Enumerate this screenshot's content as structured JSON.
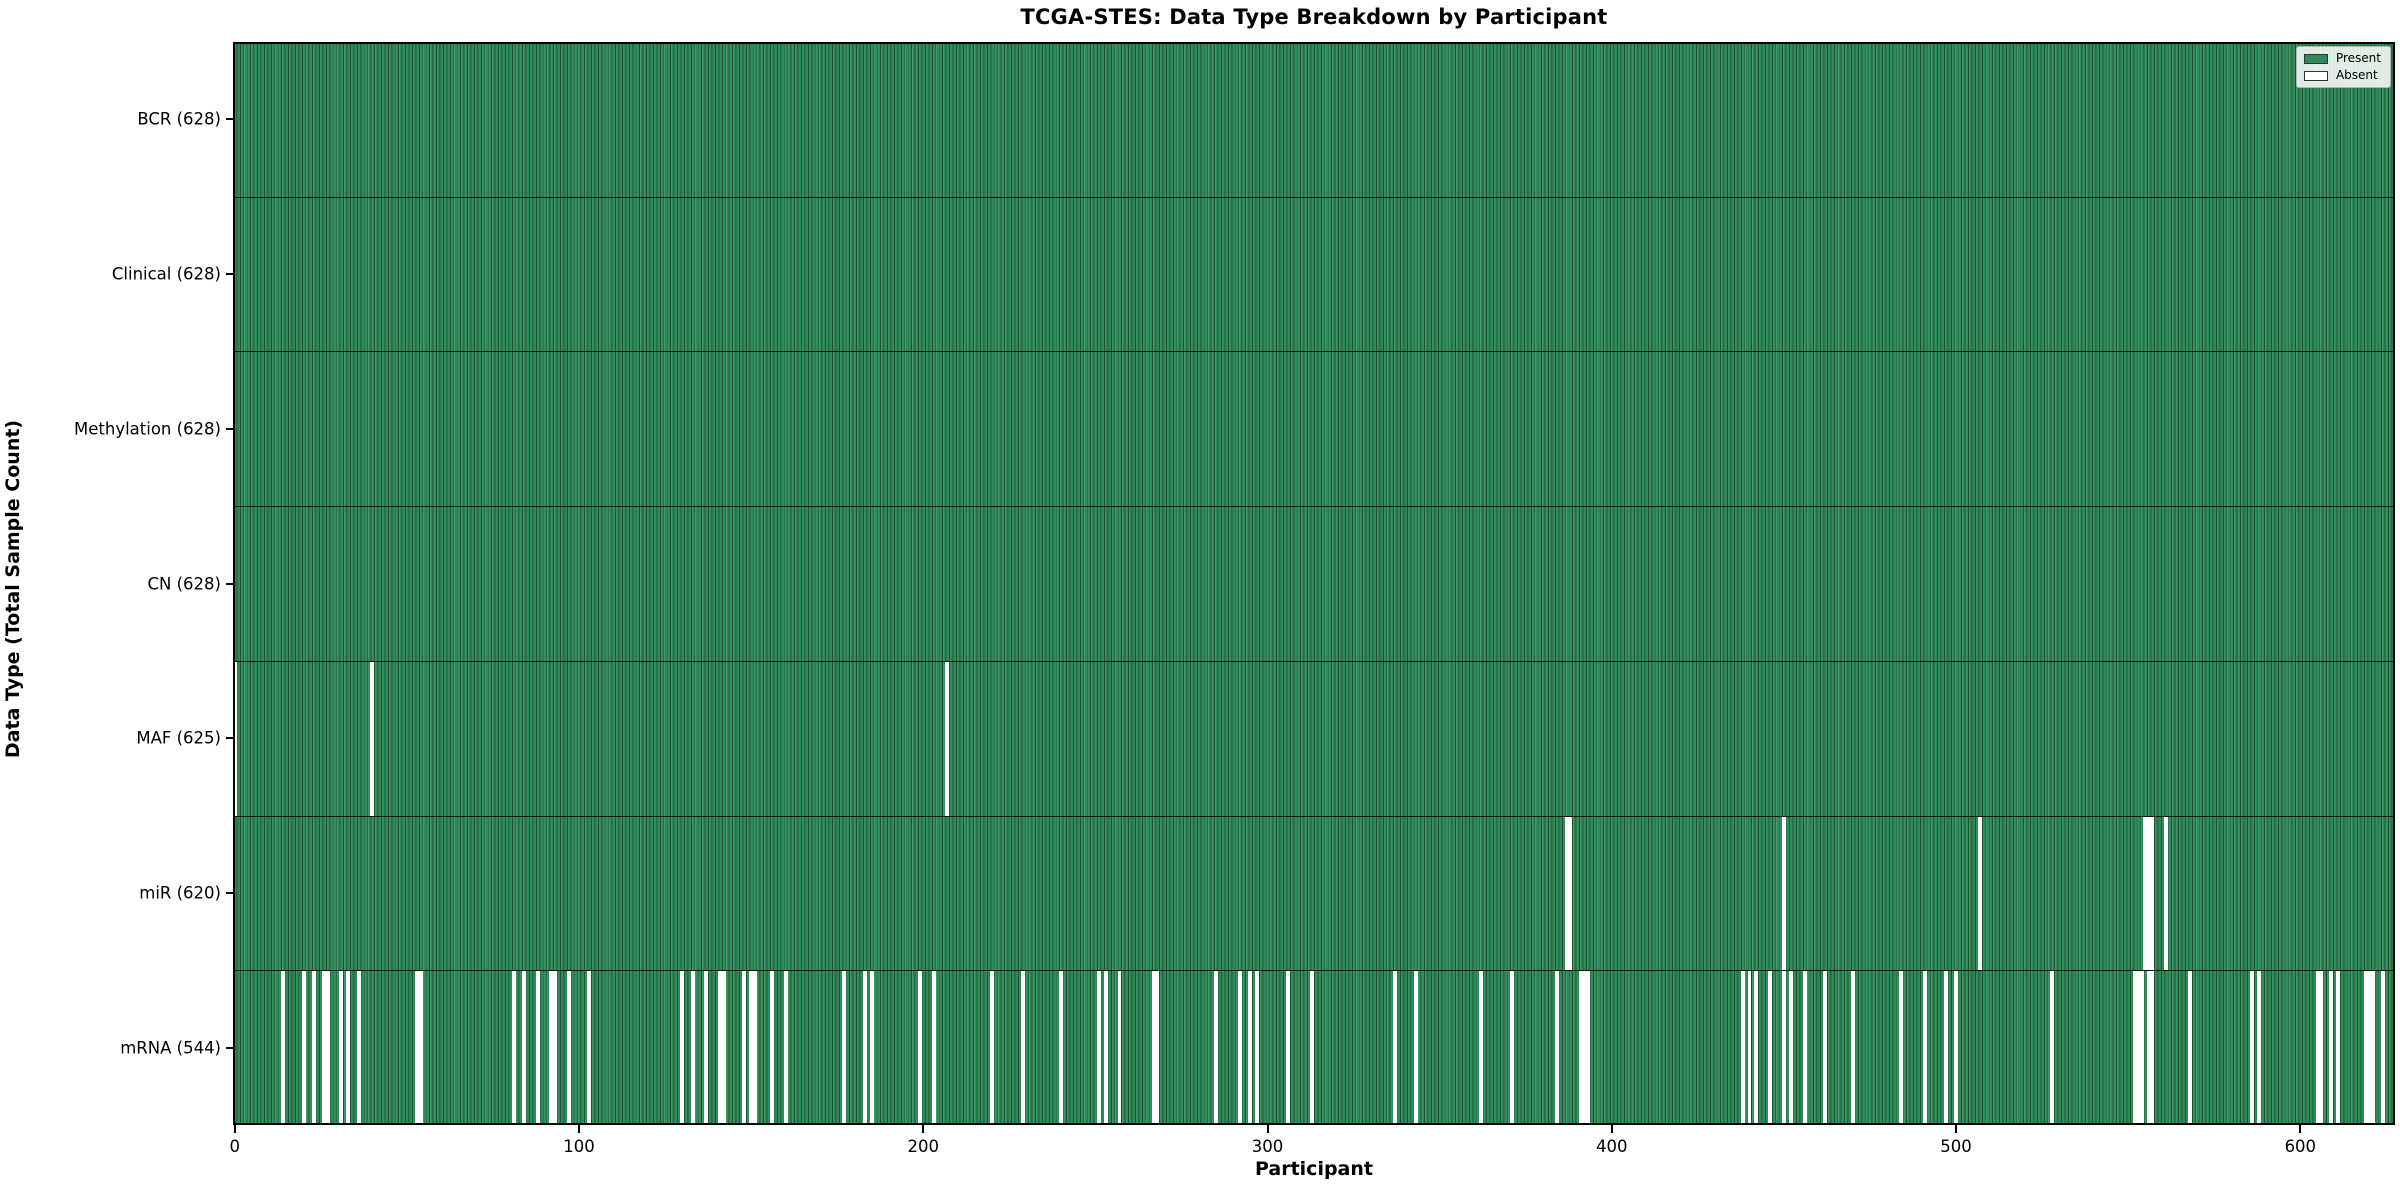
{
  "title": "TCGA-STES: Data Type Breakdown by Participant",
  "chart_data": {
    "type": "heatmap",
    "title": "TCGA-STES: Data Type Breakdown by Participant",
    "xlabel": "Participant",
    "ylabel": "Data Type (Total Sample Count)",
    "x_ticks": [
      0,
      100,
      200,
      300,
      400,
      500,
      600
    ],
    "x_range": [
      0,
      628
    ],
    "n_participants": 628,
    "grid": false,
    "legend_position": "upper right",
    "legend": [
      {
        "label": "Present",
        "color": "#2e8b57"
      },
      {
        "label": "Absent",
        "color": "#ffffff"
      }
    ],
    "colors": {
      "present": "#2e8b57",
      "absent": "#ffffff",
      "bar_edge": "rgba(0,0,0,0.42)"
    },
    "rows": [
      {
        "label": "BCR (628)",
        "data_type": "BCR",
        "total_count": 628,
        "absent_participants": []
      },
      {
        "label": "Clinical (628)",
        "data_type": "Clinical",
        "total_count": 628,
        "absent_participants": []
      },
      {
        "label": "Methylation (628)",
        "data_type": "Methylation",
        "total_count": 628,
        "absent_participants": []
      },
      {
        "label": "CN (628)",
        "data_type": "CN",
        "total_count": 628,
        "absent_participants": []
      },
      {
        "label": "MAF (625)",
        "data_type": "MAF",
        "total_count": 625,
        "absent_participants": [
          0,
          40,
          207
        ]
      },
      {
        "label": "miR (620)",
        "data_type": "miR",
        "total_count": 620,
        "absent_participants": [
          387,
          388,
          450,
          507,
          555,
          556,
          557,
          561
        ]
      },
      {
        "label": "mRNA (544)",
        "data_type": "mRNA",
        "total_count": 544,
        "absent_participants": [
          14,
          20,
          23,
          26,
          27,
          31,
          33,
          36,
          53,
          54,
          81,
          84,
          88,
          92,
          93,
          97,
          103,
          130,
          133,
          137,
          141,
          142,
          148,
          150,
          151,
          156,
          160,
          177,
          183,
          185,
          199,
          203,
          220,
          229,
          240,
          251,
          253,
          257,
          267,
          268,
          285,
          292,
          295,
          297,
          306,
          313,
          337,
          343,
          362,
          371,
          384,
          391,
          392,
          393,
          438,
          440,
          442,
          446,
          450,
          452,
          456,
          462,
          470,
          484,
          491,
          497,
          500,
          528,
          552,
          553,
          554,
          556,
          557,
          568,
          586,
          588,
          605,
          606,
          609,
          611,
          619,
          620,
          621,
          624
        ]
      }
    ]
  }
}
